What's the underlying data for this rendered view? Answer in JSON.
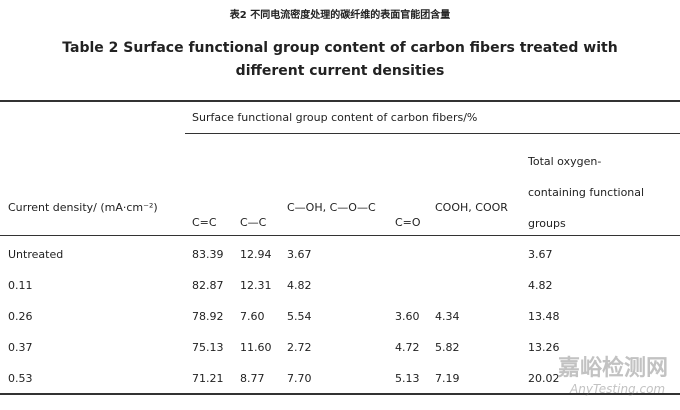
{
  "header": {
    "caption_cn": "表2 不同电流密度处理的碳纤维的表面官能团含量",
    "title": "Table 2 Surface functional group content of carbon fibers treated with different current densities"
  },
  "table": {
    "group_header": "Surface functional group content of carbon fibers/%",
    "columns": [
      "Current density/ (mA·cm⁻²)",
      "C=C",
      "C—C",
      "C—OH, C—O—C",
      "C=O",
      "COOH, COOR",
      "Total oxygen-containing functional groups"
    ],
    "rows": [
      [
        "Untreated",
        "83.39",
        "12.94",
        "3.67",
        null,
        null,
        "3.67"
      ],
      [
        "0.11",
        "82.87",
        "12.31",
        "4.82",
        null,
        null,
        "4.82"
      ],
      [
        "0.26",
        "78.92",
        "7.60",
        "5.54",
        "3.60",
        "4.34",
        "13.48"
      ],
      [
        "0.37",
        "75.13",
        "11.60",
        "2.72",
        "4.72",
        "5.82",
        "13.26"
      ],
      [
        "0.53",
        "71.21",
        "8.77",
        "7.70",
        "5.13",
        "7.19",
        "20.02"
      ]
    ]
  },
  "watermark": {
    "cn": "嘉峪检测网",
    "en": "AnyTesting.com"
  }
}
